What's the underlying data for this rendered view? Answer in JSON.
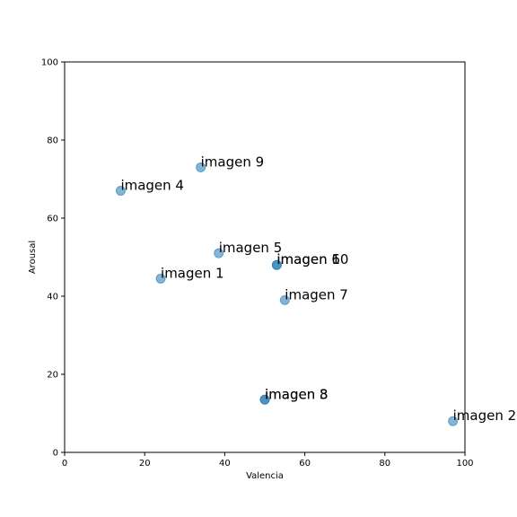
{
  "chart_data": {
    "type": "scatter",
    "title": "",
    "xlabel": "Valencia",
    "ylabel": "Arousal",
    "xlim": [
      0,
      100
    ],
    "ylim": [
      0,
      100
    ],
    "xticks": [
      "0",
      "20",
      "40",
      "60",
      "80",
      "100"
    ],
    "yticks": [
      "0",
      "20",
      "40",
      "60",
      "80",
      "100"
    ],
    "grid": false,
    "marker_color": "#1f77b4",
    "marker_alpha": 0.55,
    "points": [
      {
        "label": "imagen 1",
        "x": 24,
        "y": 44.5
      },
      {
        "label": "imagen 2",
        "x": 97,
        "y": 8
      },
      {
        "label": "imagen 3",
        "x": 50,
        "y": 13.5
      },
      {
        "label": "imagen 4",
        "x": 14,
        "y": 67
      },
      {
        "label": "imagen 5",
        "x": 38.5,
        "y": 51
      },
      {
        "label": "imagen 6",
        "x": 53,
        "y": 48
      },
      {
        "label": "imagen 7",
        "x": 55,
        "y": 39
      },
      {
        "label": "imagen 8",
        "x": 50,
        "y": 13.5
      },
      {
        "label": "imagen 9",
        "x": 34,
        "y": 73
      },
      {
        "label": "imagen 10",
        "x": 53,
        "y": 48
      }
    ]
  }
}
